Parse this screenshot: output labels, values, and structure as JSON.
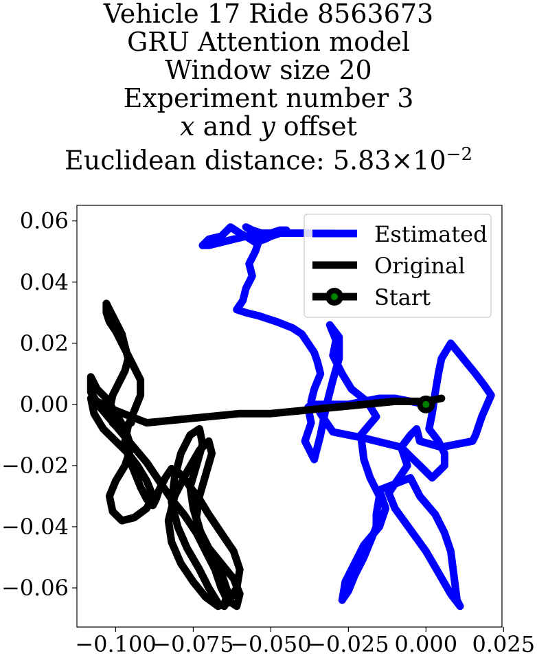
{
  "title_lines": [
    "Vehicle 17 Ride 8563673",
    "GRU Attention model",
    "Window size 20",
    "Experiment number 3",
    "$x$ and $y$ offset",
    "Euclidean distance: $5.83\\times10^{-2}$"
  ],
  "chart_data": {
    "type": "line",
    "title": "Vehicle 17 Ride 8563673 / GRU Attention model / Window size 20 / Experiment number 3 / x and y offset / Euclidean distance: 5.83×10^-2",
    "xlabel": "",
    "ylabel": "",
    "xlim": [
      -0.1125,
      0.0245
    ],
    "ylim": [
      -0.0728,
      0.0651
    ],
    "x_ticks": [
      -0.1,
      -0.075,
      -0.05,
      -0.025,
      0.0,
      0.025
    ],
    "x_tick_labels": [
      "−0.100",
      "−0.075",
      "−0.050",
      "−0.025",
      "0.000",
      "0.025"
    ],
    "y_ticks": [
      -0.06,
      -0.04,
      -0.02,
      0.0,
      0.02,
      0.04,
      0.06
    ],
    "y_tick_labels": [
      "−0.06",
      "−0.04",
      "−0.02",
      "0.00",
      "0.02",
      "0.04",
      "0.06"
    ],
    "grid": false,
    "legend_position": "top-right",
    "series": [
      {
        "name": "Estimated",
        "color": "#0000ff",
        "x": [
          0.0,
          -0.005,
          -0.01,
          -0.015,
          -0.02,
          -0.025,
          -0.03,
          -0.037,
          -0.038,
          -0.037,
          -0.039,
          -0.036,
          -0.034,
          -0.032,
          -0.03,
          -0.028,
          -0.028,
          -0.031,
          -0.029,
          -0.03,
          -0.027,
          -0.024,
          -0.019,
          -0.016,
          -0.021,
          -0.02,
          -0.018,
          -0.015,
          -0.016,
          -0.016,
          -0.018,
          -0.02,
          -0.023,
          -0.025,
          -0.027,
          -0.026,
          -0.023,
          -0.02,
          -0.015,
          -0.013,
          -0.015,
          -0.01,
          -0.005,
          -0.002,
          0.003,
          0.006,
          0.008,
          0.009,
          0.01,
          0.011,
          0.008,
          0.004,
          0.0,
          -0.005,
          -0.01,
          -0.012,
          -0.01,
          -0.008,
          -0.006,
          -0.008,
          -0.005,
          -0.003,
          -0.002,
          0.005,
          0.01,
          0.015,
          0.016,
          0.018,
          0.021,
          0.019,
          0.016,
          0.012,
          0.008,
          0.005,
          0.004,
          0.003,
          0.002,
          0.001,
          0.004,
          0.006,
          0.006,
          0.004,
          0.002,
          0.0,
          -0.002,
          -0.004,
          -0.006,
          -0.008,
          -0.012,
          -0.016,
          -0.02,
          -0.025,
          -0.03,
          -0.032,
          -0.034,
          -0.035,
          -0.037,
          -0.036,
          -0.034,
          -0.035,
          -0.036,
          -0.038,
          -0.04,
          -0.043,
          -0.048,
          -0.054,
          -0.058,
          -0.061,
          -0.059,
          -0.058,
          -0.056,
          -0.057,
          -0.055,
          -0.054,
          -0.055,
          -0.058,
          -0.062,
          -0.066,
          -0.07,
          -0.072,
          -0.07,
          -0.066,
          -0.063,
          -0.06,
          -0.058,
          -0.055,
          -0.052,
          -0.05,
          -0.047,
          -0.045,
          -0.047,
          -0.05,
          -0.051,
          -0.053,
          -0.056,
          -0.058,
          -0.055,
          -0.05,
          -0.045,
          -0.04,
          -0.035,
          -0.03
        ],
        "y": [
          0.0,
          0.001,
          0.002,
          0.002,
          0.001,
          0.0,
          0.0,
          0.0,
          -0.001,
          -0.006,
          -0.012,
          -0.018,
          -0.01,
          0.0,
          0.008,
          0.015,
          0.022,
          0.026,
          0.021,
          0.016,
          0.01,
          0.005,
          0.001,
          -0.004,
          -0.01,
          -0.018,
          -0.024,
          -0.03,
          -0.036,
          -0.04,
          -0.045,
          -0.05,
          -0.056,
          -0.061,
          -0.064,
          -0.058,
          -0.052,
          -0.046,
          -0.04,
          -0.034,
          -0.028,
          -0.026,
          -0.024,
          -0.03,
          -0.036,
          -0.042,
          -0.048,
          -0.056,
          -0.064,
          -0.066,
          -0.062,
          -0.055,
          -0.048,
          -0.041,
          -0.034,
          -0.029,
          -0.026,
          -0.023,
          -0.02,
          -0.014,
          -0.01,
          -0.008,
          -0.012,
          -0.014,
          -0.013,
          -0.012,
          -0.01,
          -0.004,
          0.003,
          0.006,
          0.01,
          0.015,
          0.02,
          0.015,
          0.01,
          0.004,
          -0.003,
          -0.008,
          -0.012,
          -0.016,
          -0.02,
          -0.022,
          -0.024,
          -0.022,
          -0.02,
          -0.018,
          -0.016,
          -0.014,
          -0.013,
          -0.012,
          -0.011,
          -0.01,
          -0.009,
          -0.006,
          -0.003,
          -0.001,
          0.001,
          0.005,
          0.01,
          0.014,
          0.017,
          0.02,
          0.023,
          0.025,
          0.027,
          0.029,
          0.03,
          0.031,
          0.034,
          0.038,
          0.042,
          0.046,
          0.05,
          0.053,
          0.055,
          0.055,
          0.054,
          0.053,
          0.052,
          0.052,
          0.054,
          0.055,
          0.058,
          0.056,
          0.055,
          0.053,
          0.054,
          0.055,
          0.056,
          0.057,
          0.057,
          0.056,
          0.055,
          0.056,
          0.057,
          0.058,
          0.056,
          0.056,
          0.056,
          0.056,
          0.056,
          0.056
        ]
      },
      {
        "name": "Original",
        "color": "#000000",
        "x": [
          0.005,
          0.0,
          -0.01,
          -0.02,
          -0.03,
          -0.04,
          -0.05,
          -0.06,
          -0.07,
          -0.08,
          -0.09,
          -0.095,
          -0.1,
          -0.104,
          -0.108,
          -0.107,
          -0.104,
          -0.1,
          -0.096,
          -0.093,
          -0.09,
          -0.088,
          -0.09,
          -0.094,
          -0.098,
          -0.101,
          -0.102,
          -0.1,
          -0.097,
          -0.095,
          -0.097,
          -0.1,
          -0.103,
          -0.106,
          -0.108,
          -0.108,
          -0.105,
          -0.1,
          -0.095,
          -0.09,
          -0.086,
          -0.082,
          -0.078,
          -0.074,
          -0.071,
          -0.068,
          -0.066,
          -0.064,
          -0.061,
          -0.06,
          -0.062,
          -0.066,
          -0.07,
          -0.073,
          -0.075,
          -0.076,
          -0.074,
          -0.072,
          -0.073,
          -0.076,
          -0.079,
          -0.081,
          -0.082,
          -0.08,
          -0.077,
          -0.073,
          -0.07,
          -0.067,
          -0.065,
          -0.064,
          -0.066,
          -0.069,
          -0.072,
          -0.074,
          -0.073,
          -0.071,
          -0.069,
          -0.07,
          -0.073,
          -0.077,
          -0.081,
          -0.083,
          -0.082,
          -0.079,
          -0.075,
          -0.071,
          -0.067,
          -0.064,
          -0.061,
          -0.06,
          -0.062,
          -0.066,
          -0.07,
          -0.073,
          -0.076,
          -0.078,
          -0.08,
          -0.082,
          -0.084,
          -0.086,
          -0.087,
          -0.088,
          -0.09,
          -0.092,
          -0.094,
          -0.096,
          -0.097,
          -0.096,
          -0.094,
          -0.092,
          -0.092,
          -0.094,
          -0.096,
          -0.098,
          -0.1,
          -0.102,
          -0.103,
          -0.103,
          -0.102,
          -0.1,
          -0.098,
          -0.097,
          -0.096,
          -0.097,
          -0.099,
          -0.101,
          -0.102,
          -0.101,
          -0.099,
          -0.097,
          -0.095
        ],
        "y": [
          0.002,
          0.001,
          0.001,
          0.0,
          -0.001,
          -0.002,
          -0.003,
          -0.003,
          -0.004,
          -0.005,
          -0.006,
          -0.004,
          -0.002,
          0.0,
          0.002,
          -0.003,
          -0.008,
          -0.012,
          -0.016,
          -0.02,
          -0.025,
          -0.03,
          -0.034,
          -0.037,
          -0.038,
          -0.035,
          -0.03,
          -0.025,
          -0.02,
          -0.014,
          -0.008,
          -0.003,
          0.002,
          0.005,
          0.009,
          0.004,
          -0.001,
          -0.007,
          -0.013,
          -0.019,
          -0.025,
          -0.031,
          -0.036,
          -0.042,
          -0.048,
          -0.054,
          -0.06,
          -0.064,
          -0.066,
          -0.062,
          -0.057,
          -0.052,
          -0.047,
          -0.041,
          -0.034,
          -0.027,
          -0.02,
          -0.013,
          -0.008,
          -0.01,
          -0.016,
          -0.024,
          -0.032,
          -0.04,
          -0.047,
          -0.054,
          -0.06,
          -0.065,
          -0.066,
          -0.061,
          -0.055,
          -0.05,
          -0.044,
          -0.037,
          -0.03,
          -0.023,
          -0.016,
          -0.012,
          -0.015,
          -0.022,
          -0.03,
          -0.038,
          -0.045,
          -0.052,
          -0.058,
          -0.063,
          -0.066,
          -0.065,
          -0.06,
          -0.054,
          -0.048,
          -0.042,
          -0.036,
          -0.031,
          -0.027,
          -0.024,
          -0.022,
          -0.021,
          -0.024,
          -0.028,
          -0.031,
          -0.033,
          -0.031,
          -0.027,
          -0.022,
          -0.017,
          -0.012,
          -0.007,
          -0.002,
          0.003,
          0.008,
          0.012,
          0.016,
          0.02,
          0.024,
          0.027,
          0.03,
          0.033,
          0.031,
          0.027,
          0.023,
          0.019,
          0.015,
          0.011,
          0.007,
          0.003,
          -0.002,
          -0.006,
          -0.008,
          -0.007,
          -0.006
        ]
      }
    ],
    "start_marker": {
      "name": "Start",
      "x": 0.0,
      "y": 0.0,
      "outer_color": "#000000",
      "inner_color": "#008000"
    },
    "legend": [
      {
        "label": "Estimated",
        "color": "#0000ff",
        "marker": false
      },
      {
        "label": "Original",
        "color": "#000000",
        "marker": false
      },
      {
        "label": "Start",
        "color": "#000000",
        "marker": true
      }
    ]
  }
}
